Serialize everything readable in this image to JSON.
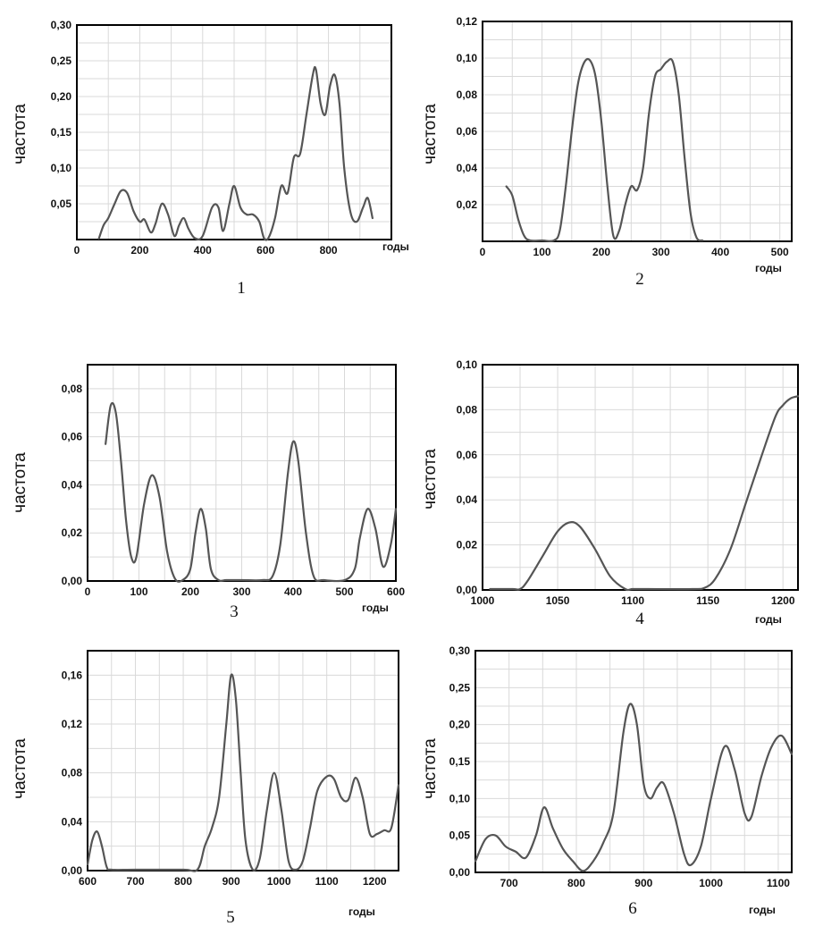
{
  "chart_data": [
    {
      "type": "line",
      "number": "1",
      "ylabel": "частота",
      "xunit": "годы",
      "xlim": [
        0,
        1000
      ],
      "ylim": [
        0,
        0.3
      ],
      "xticks": [
        0,
        200,
        400,
        600,
        800
      ],
      "xtick_labels": [
        "0",
        "200",
        "400",
        "600",
        "800"
      ],
      "yticks": [
        0.05,
        0.1,
        0.15,
        0.2,
        0.25,
        0.3
      ],
      "ytick_labels": [
        "0,05",
        "0,10",
        "0,15",
        "0,20",
        "0,25",
        "0,30"
      ],
      "grid": true,
      "series": [
        {
          "x": [
            70,
            85,
            100,
            120,
            140,
            160,
            180,
            200,
            215,
            235,
            250,
            270,
            290,
            310,
            325,
            340,
            355,
            375,
            400,
            430,
            450,
            465,
            485,
            500,
            520,
            540,
            560,
            580,
            595,
            610,
            630,
            650,
            670,
            690,
            710,
            730,
            750,
            760,
            775,
            790,
            805,
            820,
            835,
            850,
            870,
            890,
            910,
            925,
            940
          ],
          "y": [
            0.0,
            0.02,
            0.03,
            0.05,
            0.068,
            0.065,
            0.04,
            0.025,
            0.028,
            0.01,
            0.022,
            0.05,
            0.035,
            0.005,
            0.02,
            0.03,
            0.015,
            0.002,
            0.005,
            0.045,
            0.045,
            0.012,
            0.05,
            0.075,
            0.045,
            0.035,
            0.035,
            0.025,
            0.002,
            0.003,
            0.03,
            0.075,
            0.065,
            0.115,
            0.12,
            0.175,
            0.23,
            0.238,
            0.19,
            0.175,
            0.215,
            0.23,
            0.19,
            0.1,
            0.038,
            0.025,
            0.045,
            0.058,
            0.03
          ]
        }
      ]
    },
    {
      "type": "line",
      "number": "2",
      "ylabel": "частота",
      "xunit": "годы",
      "xlim": [
        0,
        520
      ],
      "ylim": [
        0,
        0.12
      ],
      "xticks": [
        0,
        100,
        200,
        300,
        400,
        500
      ],
      "xtick_labels": [
        "0",
        "100",
        "200",
        "300",
        "400",
        "500"
      ],
      "yticks": [
        0.02,
        0.04,
        0.06,
        0.08,
        0.1,
        0.12
      ],
      "ytick_labels": [
        "0,02",
        "0,04",
        "0,06",
        "0,08",
        "0,10",
        "0,12"
      ],
      "grid": true,
      "series": [
        {
          "x": [
            40,
            50,
            60,
            70,
            80,
            100,
            120,
            130,
            140,
            150,
            160,
            170,
            180,
            190,
            200,
            210,
            220,
            230,
            240,
            250,
            260,
            270,
            280,
            290,
            300,
            310,
            320,
            330,
            340,
            350,
            360,
            370
          ],
          "y": [
            0.03,
            0.025,
            0.012,
            0.003,
            0.0,
            0.0,
            0.0,
            0.006,
            0.03,
            0.06,
            0.085,
            0.097,
            0.099,
            0.09,
            0.065,
            0.03,
            0.003,
            0.006,
            0.02,
            0.03,
            0.028,
            0.04,
            0.07,
            0.09,
            0.094,
            0.098,
            0.098,
            0.08,
            0.045,
            0.015,
            0.002,
            0.0
          ]
        }
      ]
    },
    {
      "type": "line",
      "number": "3",
      "ylabel": "частота",
      "xunit": "годы",
      "xlim": [
        0,
        600
      ],
      "ylim": [
        0,
        0.09
      ],
      "xticks": [
        0,
        100,
        200,
        300,
        400,
        500,
        600
      ],
      "xtick_labels": [
        "0",
        "100",
        "200",
        "300",
        "400",
        "500",
        "600"
      ],
      "yticks": [
        0.0,
        0.02,
        0.04,
        0.06,
        0.08
      ],
      "ytick_labels": [
        "0,00",
        "0,02",
        "0,04",
        "0,06",
        "0,08"
      ],
      "grid": true,
      "series": [
        {
          "x": [
            35,
            45,
            55,
            65,
            75,
            85,
            95,
            110,
            125,
            140,
            155,
            170,
            185,
            200,
            210,
            220,
            230,
            240,
            255,
            270,
            300,
            340,
            360,
            375,
            390,
            400,
            410,
            425,
            440,
            460,
            500,
            520,
            530,
            545,
            560,
            575,
            590,
            600
          ],
          "y": [
            0.057,
            0.073,
            0.07,
            0.05,
            0.025,
            0.01,
            0.01,
            0.032,
            0.044,
            0.035,
            0.012,
            0.001,
            0.0,
            0.005,
            0.02,
            0.03,
            0.022,
            0.005,
            0.0,
            0.0,
            0.0,
            0.0,
            0.002,
            0.015,
            0.045,
            0.058,
            0.05,
            0.02,
            0.002,
            0.0,
            0.0,
            0.005,
            0.018,
            0.03,
            0.022,
            0.006,
            0.015,
            0.03
          ]
        }
      ]
    },
    {
      "type": "line",
      "number": "4",
      "ylabel": "частота",
      "xunit": "годы",
      "xlim": [
        1000,
        1210
      ],
      "ylim": [
        0,
        0.1
      ],
      "xticks": [
        1000,
        1050,
        1100,
        1150,
        1200
      ],
      "xtick_labels": [
        "1000",
        "1050",
        "1100",
        "1150",
        "1200"
      ],
      "yticks": [
        0.0,
        0.02,
        0.04,
        0.06,
        0.08,
        0.1
      ],
      "ytick_labels": [
        "0,00",
        "0,02",
        "0,04",
        "0,06",
        "0,08",
        "0,10"
      ],
      "grid": true,
      "series": [
        {
          "x": [
            1005,
            1020,
            1025,
            1030,
            1040,
            1050,
            1058,
            1065,
            1075,
            1085,
            1095,
            1100,
            1110,
            1140,
            1148,
            1155,
            1165,
            1175,
            1185,
            1195,
            1200,
            1205,
            1210
          ],
          "y": [
            0.0,
            0.0,
            0.0,
            0.004,
            0.015,
            0.026,
            0.03,
            0.028,
            0.018,
            0.006,
            0.0,
            0.0,
            0.0,
            0.0,
            0.001,
            0.005,
            0.018,
            0.038,
            0.058,
            0.077,
            0.082,
            0.085,
            0.086
          ]
        }
      ]
    },
    {
      "type": "line",
      "number": "5",
      "ylabel": "частота",
      "xunit": "годы",
      "xlim": [
        600,
        1250
      ],
      "ylim": [
        0,
        0.18
      ],
      "xticks": [
        600,
        700,
        800,
        900,
        1000,
        1100,
        1200
      ],
      "xtick_labels": [
        "600",
        "700",
        "800",
        "900",
        "1000",
        "1100",
        "1200"
      ],
      "yticks": [
        0.0,
        0.04,
        0.08,
        0.12,
        0.16
      ],
      "ytick_labels": [
        "0,00",
        "0,04",
        "0,08",
        "0,12",
        "0,16"
      ],
      "grid": true,
      "series": [
        {
          "x": [
            600,
            610,
            620,
            630,
            640,
            650,
            700,
            800,
            830,
            845,
            860,
            875,
            890,
            900,
            910,
            920,
            930,
            945,
            960,
            975,
            990,
            1005,
            1020,
            1035,
            1050,
            1065,
            1080,
            1100,
            1115,
            1130,
            1145,
            1160,
            1175,
            1190,
            1205,
            1220,
            1235,
            1250
          ],
          "y": [
            0.005,
            0.025,
            0.032,
            0.02,
            0.003,
            0.0,
            0.0,
            0.0,
            0.001,
            0.02,
            0.035,
            0.06,
            0.12,
            0.16,
            0.14,
            0.08,
            0.025,
            0.001,
            0.01,
            0.05,
            0.08,
            0.05,
            0.008,
            0.0,
            0.008,
            0.035,
            0.065,
            0.077,
            0.075,
            0.06,
            0.058,
            0.076,
            0.06,
            0.03,
            0.03,
            0.033,
            0.035,
            0.07
          ]
        }
      ]
    },
    {
      "type": "line",
      "number": "6",
      "ylabel": "частота",
      "xunit": "годы",
      "xlim": [
        650,
        1120
      ],
      "ylim": [
        0,
        0.3
      ],
      "xticks": [
        700,
        800,
        900,
        1000,
        1100
      ],
      "xtick_labels": [
        "700",
        "800",
        "900",
        "1000",
        "1100"
      ],
      "yticks": [
        0.0,
        0.05,
        0.1,
        0.15,
        0.2,
        0.25,
        0.3
      ],
      "ytick_labels": [
        "0,00",
        "0,05",
        "0,10",
        "0,15",
        "0,20",
        "0,25",
        "0,30"
      ],
      "grid": true,
      "series": [
        {
          "x": [
            650,
            665,
            680,
            695,
            710,
            725,
            740,
            752,
            765,
            780,
            795,
            810,
            825,
            840,
            855,
            870,
            880,
            890,
            900,
            910,
            920,
            930,
            945,
            960,
            970,
            985,
            1000,
            1020,
            1035,
            1050,
            1060,
            1075,
            1090,
            1105,
            1120
          ],
          "y": [
            0.015,
            0.045,
            0.05,
            0.035,
            0.028,
            0.02,
            0.05,
            0.088,
            0.06,
            0.032,
            0.015,
            0.002,
            0.015,
            0.04,
            0.08,
            0.19,
            0.228,
            0.2,
            0.12,
            0.1,
            0.115,
            0.12,
            0.08,
            0.025,
            0.01,
            0.035,
            0.1,
            0.17,
            0.14,
            0.08,
            0.075,
            0.13,
            0.17,
            0.185,
            0.16
          ]
        }
      ]
    }
  ]
}
